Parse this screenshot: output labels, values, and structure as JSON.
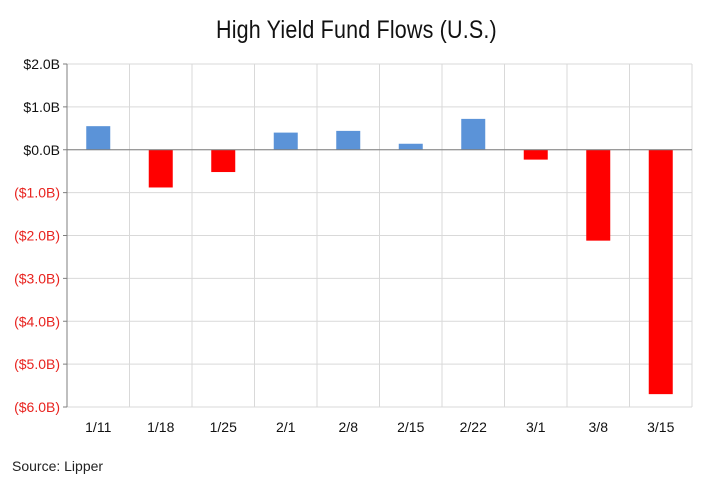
{
  "chart_data": {
    "type": "bar",
    "title": "High Yield Fund Flows (U.S.)",
    "xlabel": "",
    "ylabel": "",
    "categories": [
      "1/11",
      "1/18",
      "1/25",
      "2/1",
      "2/8",
      "2/15",
      "2/22",
      "3/1",
      "3/8",
      "3/15"
    ],
    "values": [
      0.55,
      -0.88,
      -0.52,
      0.4,
      0.44,
      0.14,
      0.72,
      -0.23,
      -2.12,
      -5.7
    ],
    "ylim": [
      -6,
      2
    ],
    "yticks": [
      2,
      1,
      0,
      -1,
      -2,
      -3,
      -4,
      -5,
      -6
    ],
    "ytick_labels": [
      "$2.0B",
      "$1.0B",
      "$0.0B",
      "($1.0B)",
      "($2.0B)",
      "($3.0B)",
      "($4.0B)",
      "($5.0B)",
      "($6.0B)"
    ],
    "grid": true,
    "legend": "none",
    "colors": {
      "positive": "#5b93d8",
      "negative": "#ff0000",
      "negative_tick_label": "#e8231f",
      "positive_tick_label": "#111111",
      "grid": "#d9d9d9",
      "axis": "#7f7f7f"
    },
    "source": "Source: Lipper"
  }
}
